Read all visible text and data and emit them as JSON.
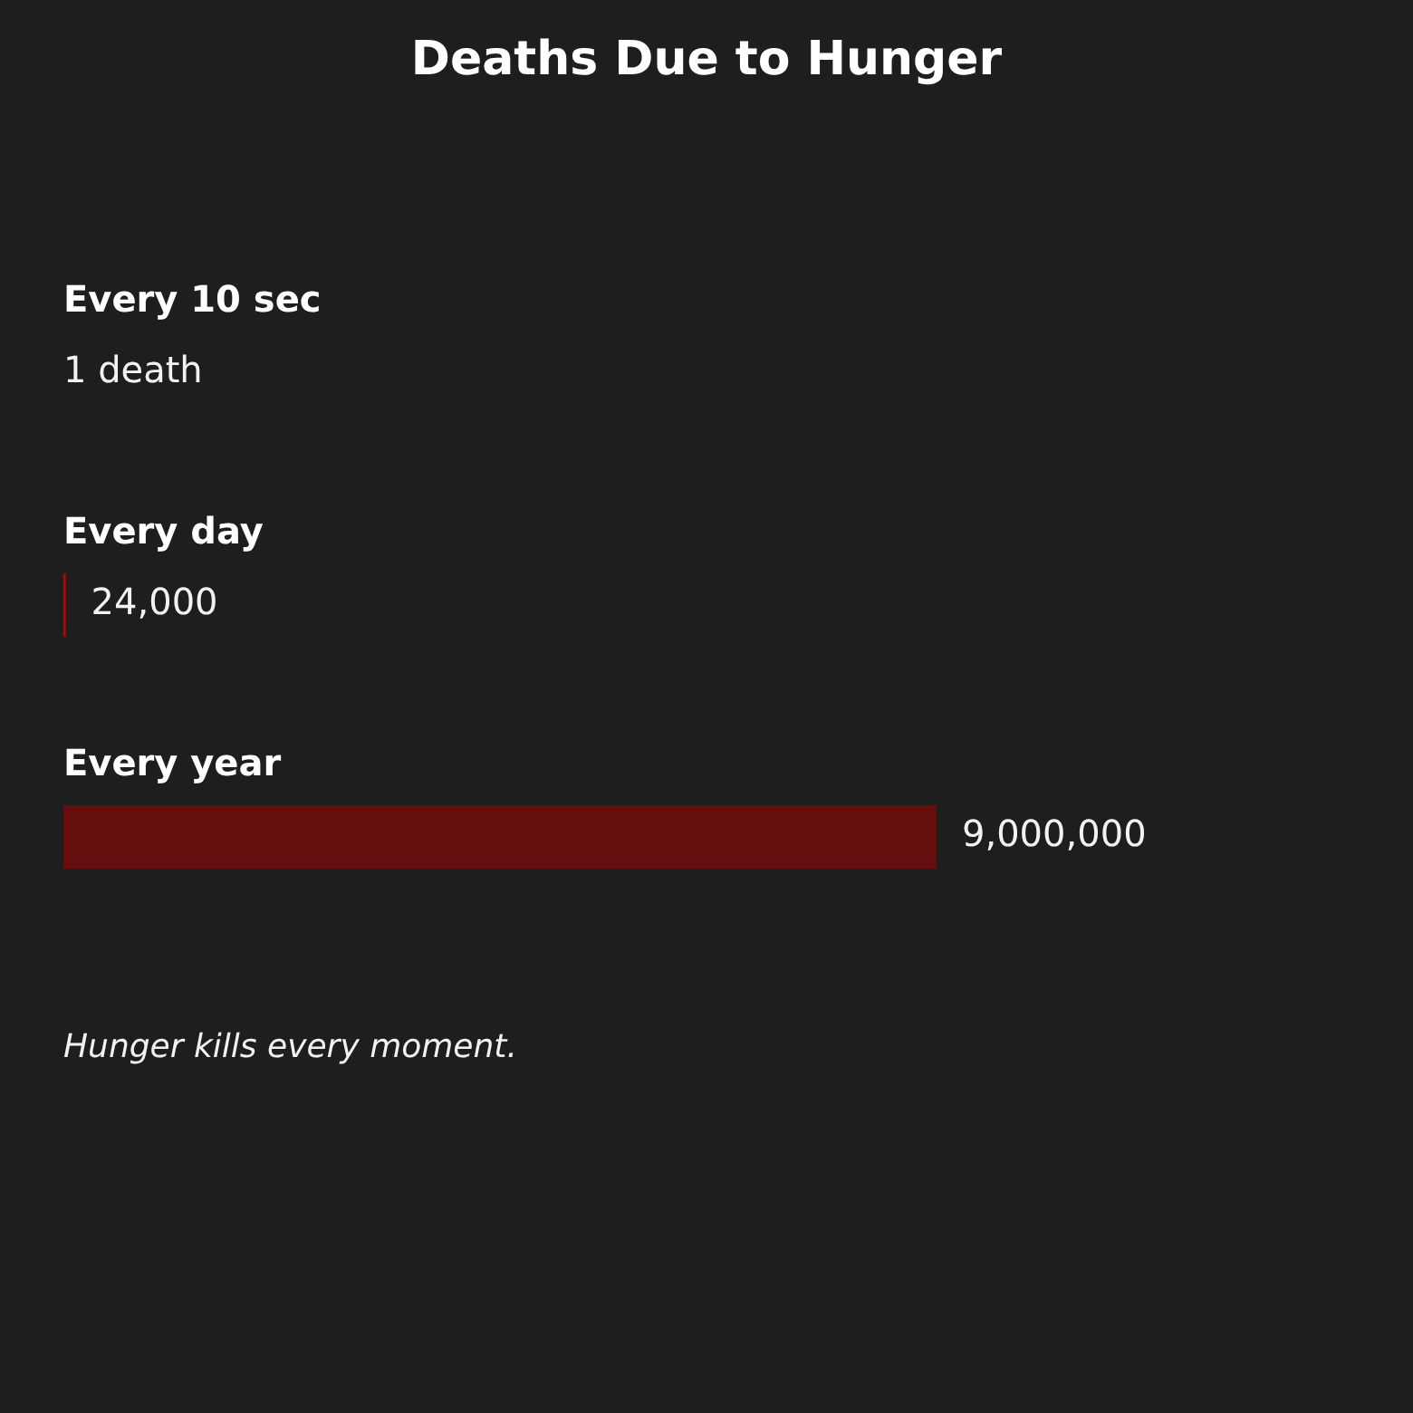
{
  "chart_data": {
    "type": "bar",
    "title": "Deaths Due to Hunger",
    "orientation": "horizontal",
    "tick_labels": "y",
    "categories": [
      "Every 10 sec",
      "Every day",
      "Every year"
    ],
    "values": [
      1,
      24000,
      9000000
    ],
    "colors": [
      "#a50d0d",
      "#a50d0d",
      "#650e0e"
    ],
    "value_labels": [
      "1 death",
      "24,000",
      "9,000,000"
    ],
    "annotations": [
      "Hunger kills every moment."
    ]
  }
}
